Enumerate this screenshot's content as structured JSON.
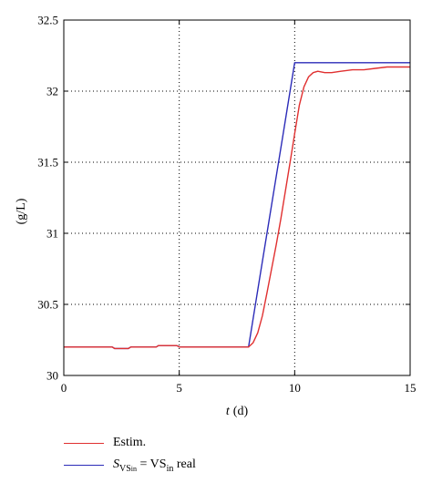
{
  "chart_data": {
    "type": "line",
    "title": "",
    "xlabel_var": "t",
    "xlabel_unit": "(d)",
    "ylabel": "(g/L)",
    "xlim": [
      0,
      15
    ],
    "ylim": [
      30,
      32.5
    ],
    "xticks": [
      0,
      5,
      10,
      15
    ],
    "yticks": [
      30,
      30.5,
      31,
      31.5,
      32,
      32.5
    ],
    "grid": true,
    "legend_position": "bottom-left",
    "series": [
      {
        "name": "Estim.",
        "color": "#e03030",
        "x": [
          0,
          2.1,
          2.2,
          2.8,
          2.9,
          4.0,
          4.1,
          4.9,
          5.0,
          8.0,
          8.2,
          8.4,
          8.6,
          8.8,
          9.0,
          9.2,
          9.4,
          9.6,
          9.8,
          10.0,
          10.2,
          10.4,
          10.6,
          10.8,
          11.0,
          11.3,
          11.6,
          12.0,
          12.5,
          13.0,
          13.5,
          14.0,
          14.5,
          15.0
        ],
        "y": [
          30.2,
          30.2,
          30.19,
          30.19,
          30.2,
          30.2,
          30.21,
          30.21,
          30.2,
          30.2,
          30.23,
          30.3,
          30.42,
          30.58,
          30.75,
          30.92,
          31.1,
          31.3,
          31.5,
          31.7,
          31.9,
          32.03,
          32.1,
          32.13,
          32.14,
          32.13,
          32.13,
          32.14,
          32.15,
          32.15,
          32.16,
          32.17,
          32.17,
          32.17
        ]
      },
      {
        "name": "S_VS_in = VS_in real",
        "color": "#2b2bb8",
        "x": [
          0,
          2.1,
          2.2,
          2.8,
          2.9,
          4.0,
          4.1,
          4.9,
          5.0,
          8.0,
          8.5,
          9.0,
          9.5,
          10.0,
          15.0
        ],
        "y": [
          30.2,
          30.2,
          30.19,
          30.19,
          30.2,
          30.2,
          30.21,
          30.21,
          30.2,
          30.2,
          30.7,
          31.2,
          31.7,
          32.2,
          32.2
        ]
      }
    ]
  },
  "legend": {
    "estim": "Estim.",
    "real_s": "S",
    "real_sub_main": "VS",
    "real_sub_in": "in",
    "real_eq": " = VS",
    "real_in": "in",
    "real_tail": " real"
  }
}
